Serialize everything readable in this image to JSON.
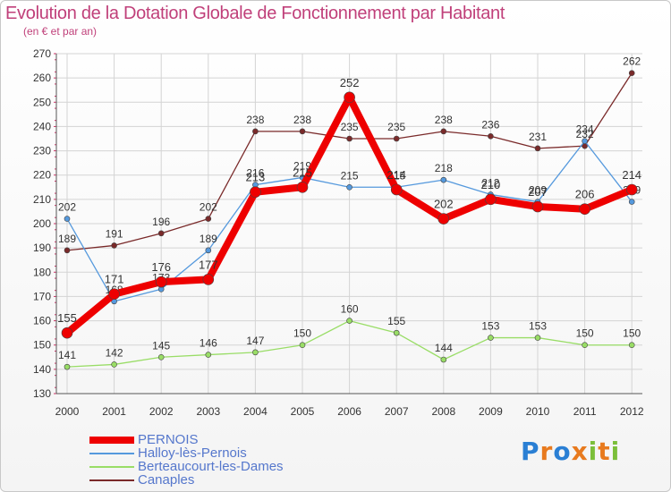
{
  "chart_data": {
    "type": "line",
    "title": "Evolution de la Dotation Globale de Fonctionnement par Habitant",
    "subtitle": "(en € et par an)",
    "x": [
      "2000",
      "2001",
      "2002",
      "2003",
      "2004",
      "2005",
      "2006",
      "2007",
      "2008",
      "2009",
      "2010",
      "2011",
      "2012"
    ],
    "ylim": [
      130,
      270
    ],
    "yticks": [
      130,
      140,
      150,
      160,
      170,
      180,
      190,
      200,
      210,
      220,
      230,
      240,
      250,
      260,
      270
    ],
    "grid": true,
    "series": [
      {
        "name": "Canaples",
        "color": "#7a2a2a",
        "values": [
          189,
          191,
          196,
          202,
          238,
          238,
          235,
          235,
          238,
          236,
          231,
          232,
          262
        ]
      },
      {
        "name": "Berteaucourt-les-Dames",
        "color": "#99dd66",
        "values": [
          141,
          142,
          145,
          146,
          147,
          150,
          160,
          155,
          144,
          153,
          153,
          150,
          150
        ]
      },
      {
        "name": "Halloy-lès-Pernois",
        "color": "#5599dd",
        "values": [
          202,
          168,
          173,
          189,
          216,
          219,
          215,
          215,
          218,
          212,
          209,
          234,
          209
        ]
      },
      {
        "name": "PERNOIS",
        "color": "#ee0000",
        "values": [
          155,
          171,
          176,
          177,
          213,
          215,
          252,
          214,
          202,
          210,
          207,
          206,
          214
        ]
      }
    ]
  },
  "legend": [
    {
      "label": "PERNOIS",
      "color": "#ee0000",
      "thickness": 8
    },
    {
      "label": "Halloy-lès-Pernois",
      "color": "#5599dd",
      "thickness": 2
    },
    {
      "label": "Berteaucourt-les-Dames",
      "color": "#99dd66",
      "thickness": 2
    },
    {
      "label": "Canaples",
      "color": "#7a2a2a",
      "thickness": 2
    }
  ],
  "logo": {
    "text": "Proxiti"
  }
}
